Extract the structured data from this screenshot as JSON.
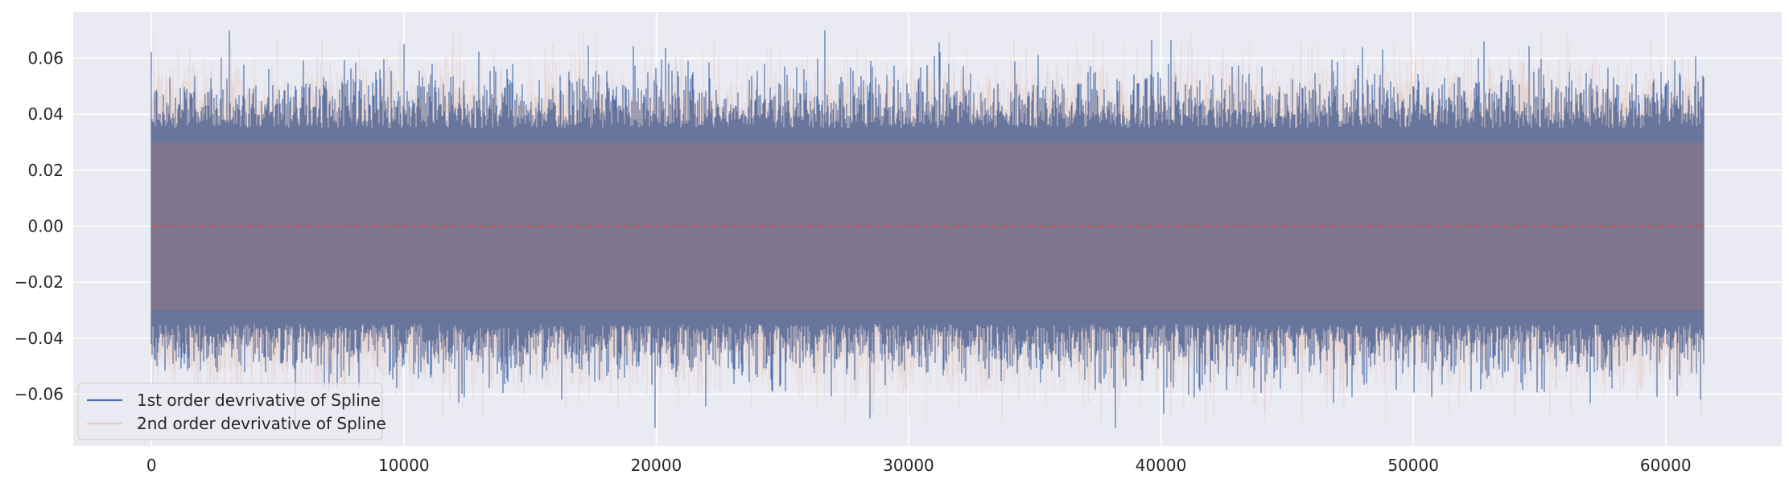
{
  "chart_data": {
    "type": "line",
    "title": "",
    "xlabel": "",
    "ylabel": "",
    "xlim": [
      -3100,
      64600
    ],
    "ylim": [
      -0.0785,
      0.0765
    ],
    "x_ticks": [
      0,
      10000,
      20000,
      30000,
      40000,
      50000,
      60000
    ],
    "x_tick_labels": [
      "0",
      "10000",
      "20000",
      "30000",
      "40000",
      "50000",
      "60000"
    ],
    "y_ticks": [
      -0.06,
      -0.04,
      -0.02,
      0.0,
      0.02,
      0.04,
      0.06
    ],
    "y_tick_labels": [
      "−0.06",
      "−0.04",
      "−0.02",
      "0.00",
      "0.02",
      "0.04",
      "0.06"
    ],
    "grid": true,
    "style": "seaborn-darkgrid",
    "legend": {
      "placement": "lower-left"
    },
    "x_range": [
      0,
      61500
    ],
    "series": [
      {
        "name": "1st order devrivative of Spline",
        "color": "#4c72b0",
        "typical_band": [
          -0.035,
          0.035
        ],
        "max": 0.07,
        "min": -0.072,
        "notable_peaks": [
          {
            "x": 26700,
            "y": 0.07
          },
          {
            "x": 10000,
            "y": 0.065
          },
          {
            "x": 52800,
            "y": 0.066
          },
          {
            "x": 38200,
            "y": -0.072
          },
          {
            "x": 40100,
            "y": -0.067
          },
          {
            "x": 12400,
            "y": -0.061
          }
        ]
      },
      {
        "name": "2nd order devrivative of Spline",
        "color": "#dd8452",
        "alpha": 0.2,
        "typical_band": [
          -0.04,
          0.04
        ],
        "max": 0.07,
        "min": -0.07
      },
      {
        "name": "",
        "color": "#c44e52",
        "style": "dashed",
        "values": [
          0,
          0
        ]
      }
    ]
  }
}
